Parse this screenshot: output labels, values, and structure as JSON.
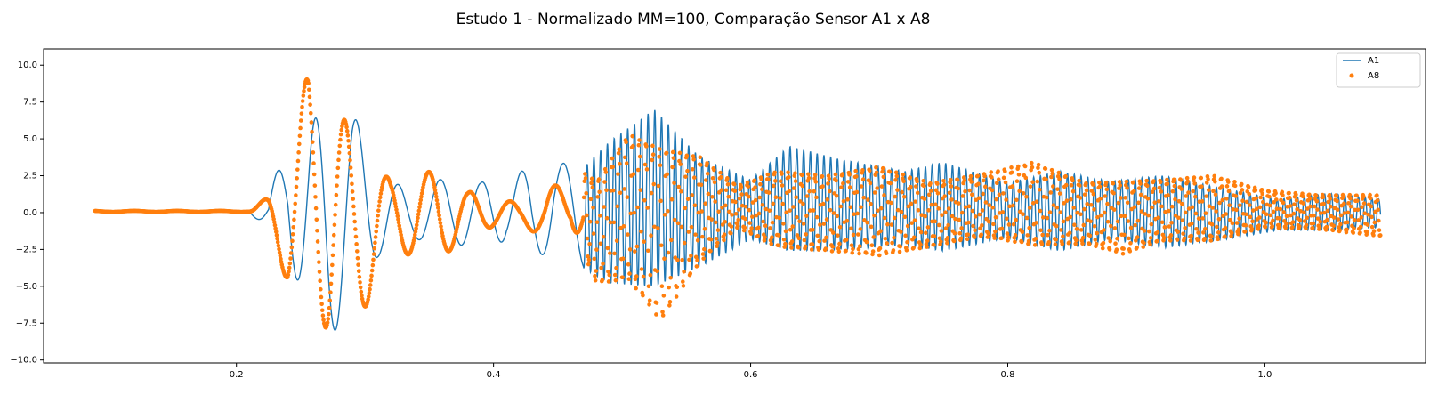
{
  "chart_data": {
    "type": "line",
    "title": "Estudo 1 - Normalizado MM=100, Comparação Sensor A1 x A8",
    "xlabel": "",
    "ylabel": "",
    "xlim": [
      0.05,
      1.125
    ],
    "ylim": [
      -10.2,
      11.1
    ],
    "x_ticks": [
      0.2,
      0.4,
      0.6,
      0.8,
      1.0
    ],
    "x_tick_labels": [
      "0.2",
      "0.4",
      "0.6",
      "0.8",
      "1.0"
    ],
    "y_ticks": [
      -10.0,
      -7.5,
      -5.0,
      -2.5,
      0.0,
      2.5,
      5.0,
      7.5,
      10.0
    ],
    "y_tick_labels": [
      "−10.0",
      "−7.5",
      "−5.0",
      "−2.5",
      "0.0",
      "2.5",
      "5.0",
      "7.5",
      "10.0"
    ],
    "grid": false,
    "legend_position": "upper right",
    "series": [
      {
        "name": "A1",
        "style": "line",
        "color": "#1f77b4",
        "x_range": [
          0.09,
          1.09
        ],
        "envelope_points": [
          {
            "x": 0.09,
            "max": 0.1,
            "min": 0.05
          },
          {
            "x": 0.21,
            "max": 0.1,
            "min": 0.05
          },
          {
            "x": 0.225,
            "max": 0.5,
            "min": -1.3
          },
          {
            "x": 0.24,
            "max": 6.1,
            "min": -1.3
          },
          {
            "x": 0.256,
            "max": 6.1,
            "min": -9.3
          },
          {
            "x": 0.272,
            "max": 7.0,
            "min": -9.3
          },
          {
            "x": 0.29,
            "max": 7.0,
            "min": -4.7
          },
          {
            "x": 0.31,
            "max": 2.6,
            "min": -3.0
          },
          {
            "x": 0.335,
            "max": 1.5,
            "min": -1.8
          },
          {
            "x": 0.37,
            "max": 2.6,
            "min": -2.0
          },
          {
            "x": 0.39,
            "max": 2.0,
            "min": -2.9
          },
          {
            "x": 0.41,
            "max": 3.5,
            "min": -1.8
          },
          {
            "x": 0.43,
            "max": 2.4,
            "min": -3.7
          },
          {
            "x": 0.447,
            "max": 3.9,
            "min": -2.0
          },
          {
            "x": 0.465,
            "max": 2.6,
            "min": -3.5
          },
          {
            "x": 0.49,
            "max": 4.8,
            "min": -4.8
          },
          {
            "x": 0.525,
            "max": 7.0,
            "min": -5.0
          },
          {
            "x": 0.56,
            "max": 3.8,
            "min": -3.7
          },
          {
            "x": 0.6,
            "max": 2.2,
            "min": -1.8
          },
          {
            "x": 0.63,
            "max": 4.5,
            "min": -2.6
          },
          {
            "x": 0.67,
            "max": 3.6,
            "min": -2.5
          },
          {
            "x": 0.72,
            "max": 2.8,
            "min": -2.2
          },
          {
            "x": 0.75,
            "max": 3.4,
            "min": -2.6
          },
          {
            "x": 0.8,
            "max": 2.0,
            "min": -1.7
          },
          {
            "x": 0.84,
            "max": 2.8,
            "min": -2.6
          },
          {
            "x": 0.88,
            "max": 2.1,
            "min": -1.8
          },
          {
            "x": 0.92,
            "max": 2.5,
            "min": -2.4
          },
          {
            "x": 0.97,
            "max": 1.6,
            "min": -1.8
          },
          {
            "x": 1.01,
            "max": 0.9,
            "min": -1.2
          },
          {
            "x": 1.05,
            "max": 1.3,
            "min": -1.2
          },
          {
            "x": 1.09,
            "max": 0.9,
            "min": -1.0
          }
        ]
      },
      {
        "name": "A8",
        "style": "markers",
        "color": "#ff7f0e",
        "x_range": [
          0.09,
          1.09
        ],
        "envelope_points": [
          {
            "x": 0.09,
            "max": 0.12,
            "min": 0.05
          },
          {
            "x": 0.21,
            "max": 0.12,
            "min": 0.05
          },
          {
            "x": 0.225,
            "max": 1.1,
            "min": -0.5
          },
          {
            "x": 0.24,
            "max": 1.1,
            "min": -5.0
          },
          {
            "x": 0.256,
            "max": 10.3,
            "min": -5.0
          },
          {
            "x": 0.272,
            "max": 10.3,
            "min": -8.4
          },
          {
            "x": 0.29,
            "max": 4.5,
            "min": -8.4
          },
          {
            "x": 0.32,
            "max": 2.2,
            "min": -2.7
          },
          {
            "x": 0.357,
            "max": 2.9,
            "min": -3.1
          },
          {
            "x": 0.38,
            "max": 1.4,
            "min": -1.8
          },
          {
            "x": 0.4,
            "max": 1.3,
            "min": -0.9
          },
          {
            "x": 0.42,
            "max": 0.5,
            "min": -0.8
          },
          {
            "x": 0.44,
            "max": 1.0,
            "min": -1.7
          },
          {
            "x": 0.46,
            "max": 3.3,
            "min": -0.6
          },
          {
            "x": 0.48,
            "max": 2.1,
            "min": -4.8
          },
          {
            "x": 0.505,
            "max": 5.3,
            "min": -4.5
          },
          {
            "x": 0.53,
            "max": 4.3,
            "min": -7.3
          },
          {
            "x": 0.56,
            "max": 3.8,
            "min": -3.4
          },
          {
            "x": 0.59,
            "max": 1.8,
            "min": -1.0
          },
          {
            "x": 0.62,
            "max": 2.8,
            "min": -2.3
          },
          {
            "x": 0.66,
            "max": 2.5,
            "min": -2.6
          },
          {
            "x": 0.7,
            "max": 3.1,
            "min": -2.9
          },
          {
            "x": 0.74,
            "max": 2.0,
            "min": -2.3
          },
          {
            "x": 0.78,
            "max": 2.6,
            "min": -1.6
          },
          {
            "x": 0.82,
            "max": 3.4,
            "min": -2.2
          },
          {
            "x": 0.86,
            "max": 2.0,
            "min": -2.1
          },
          {
            "x": 0.89,
            "max": 2.1,
            "min": -2.8
          },
          {
            "x": 0.92,
            "max": 2.2,
            "min": -1.9
          },
          {
            "x": 0.96,
            "max": 2.5,
            "min": -1.9
          },
          {
            "x": 1.0,
            "max": 1.5,
            "min": -1.0
          },
          {
            "x": 1.04,
            "max": 1.2,
            "min": -1.1
          },
          {
            "x": 1.09,
            "max": 1.2,
            "min": -1.6
          }
        ]
      }
    ]
  }
}
